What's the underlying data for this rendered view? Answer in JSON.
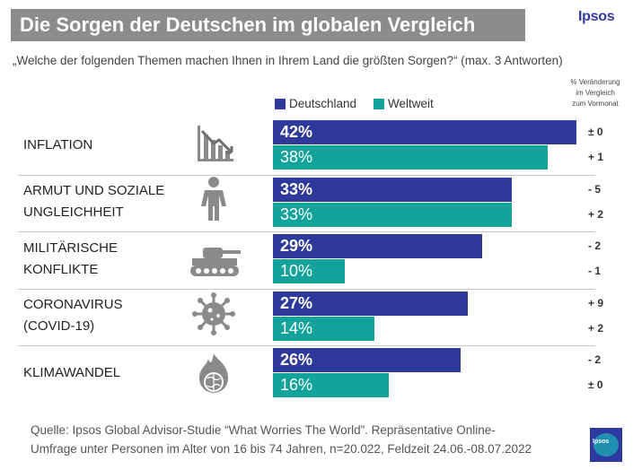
{
  "title": "Die Sorgen der Deutschen im globalen Vergleich",
  "brand": "Ipsos",
  "question": "„Welche der folgenden Themen machen Ihnen in Ihrem Land die größten Sorgen?“ (max. 3 Antworten)",
  "legend": {
    "de": "Deutschland",
    "ww": "Weltweit"
  },
  "change_header": [
    "% Veränderung",
    "im Vergleich",
    "zum Vormonat"
  ],
  "colors": {
    "de": "#2d3a99",
    "ww": "#13a39a",
    "title_bg": "#8c8c8c"
  },
  "source": [
    "Quelle: Ipsos Global Advisor-Studie  “What Worries The World”. Repräsentative Online-",
    "Umfrage unter Personen im Alter von 16 bis 74 Jahren, n=20.022, Feldzeit 24.06.-08.07.2022"
  ],
  "chart_data": {
    "type": "bar",
    "orientation": "horizontal",
    "categories": [
      [
        "INFLATION"
      ],
      [
        "ARMUT UND SOZIALE",
        "UNGLEICHHEIT"
      ],
      [
        "MILITÄRISCHE",
        "KONFLIKTE"
      ],
      [
        "CORONAVIRUS",
        "(COVID-19)"
      ],
      [
        "KLIMAWANDEL"
      ]
    ],
    "icons": [
      "declining-chart-icon",
      "person-icon",
      "tank-icon",
      "virus-icon",
      "globe-fire-icon"
    ],
    "series": [
      {
        "name": "Deutschland",
        "values": [
          42,
          33,
          29,
          27,
          26
        ],
        "labels": [
          "42%",
          "33%",
          "29%",
          "27%",
          "26%"
        ],
        "changes": [
          "± 0",
          "- 5",
          "- 2",
          "+ 9",
          "- 2"
        ]
      },
      {
        "name": "Weltweit",
        "values": [
          38,
          33,
          10,
          14,
          16
        ],
        "labels": [
          "38%",
          "33%",
          "10%",
          "14%",
          "16%"
        ],
        "changes": [
          "+ 1",
          "+ 2",
          "- 1",
          "+ 2",
          "± 0"
        ]
      }
    ],
    "unit": "%"
  }
}
